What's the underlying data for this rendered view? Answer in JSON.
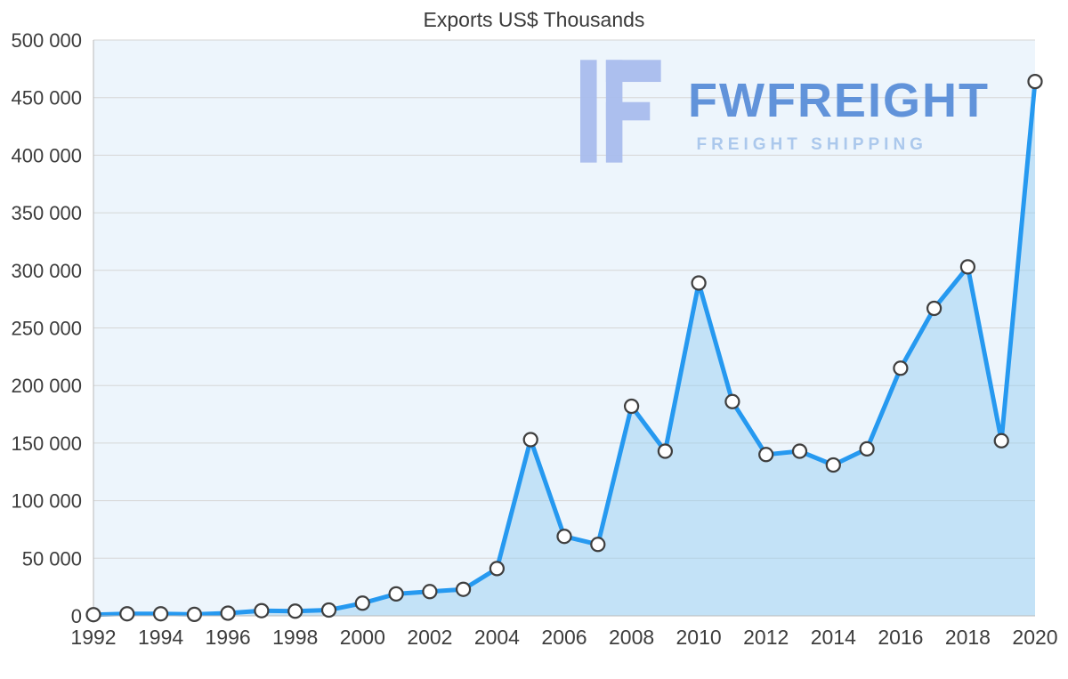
{
  "chart_data": {
    "type": "area",
    "title": "Exports US$ Thousands",
    "xlabel": "",
    "ylabel": "",
    "x": [
      1992,
      1993,
      1994,
      1995,
      1996,
      1997,
      1998,
      1999,
      2000,
      2001,
      2002,
      2003,
      2004,
      2005,
      2006,
      2007,
      2008,
      2009,
      2010,
      2011,
      2012,
      2013,
      2014,
      2015,
      2016,
      2017,
      2018,
      2019,
      2020
    ],
    "values": [
      1000,
      1800,
      1800,
      1200,
      2300,
      4500,
      4000,
      5000,
      11000,
      19000,
      21000,
      23000,
      41000,
      153000,
      69000,
      62000,
      182000,
      143000,
      289000,
      186000,
      140000,
      143000,
      131000,
      145000,
      215000,
      267000,
      303000,
      152000,
      464000
    ],
    "ylim": [
      0,
      500000
    ],
    "yticks": [
      0,
      50000,
      100000,
      150000,
      200000,
      250000,
      300000,
      350000,
      400000,
      450000,
      500000
    ],
    "ytick_labels": [
      "0",
      "50 000",
      "100 000",
      "150 000",
      "200 000",
      "250 000",
      "300 000",
      "350 000",
      "400 000",
      "450 000",
      "500 000"
    ],
    "xticks": [
      1992,
      1994,
      1996,
      1998,
      2000,
      2002,
      2004,
      2006,
      2008,
      2010,
      2012,
      2014,
      2016,
      2018,
      2020
    ],
    "xtick_labels": [
      "1992",
      "1994",
      "1996",
      "1998",
      "2000",
      "2002",
      "2004",
      "2006",
      "2008",
      "2010",
      "2012",
      "2014",
      "2016",
      "2018",
      "2020"
    ],
    "grid": true,
    "legend": "none",
    "line_color": "#2699f0",
    "area_fill": "rgba(144, 203, 242, 0.45)",
    "marker_fill": "#ffffff",
    "marker_stroke": "#3f3f3f",
    "plot_bg": "#edf5fc",
    "grid_color": "#d6d6d6",
    "axis_line_color": "#b9b9b9",
    "axis_label_color": "#3d3d3d",
    "title_color": "#3a3a3a"
  },
  "watermark": {
    "brand": "FWFREIGHT",
    "tagline": "FREIGHT SHIPPING",
    "logo_icon": "stylized-f-logo",
    "brand_color": "#5a8ed9",
    "tagline_color": "#a8c6ec",
    "logo_color": "#a9bdee"
  }
}
